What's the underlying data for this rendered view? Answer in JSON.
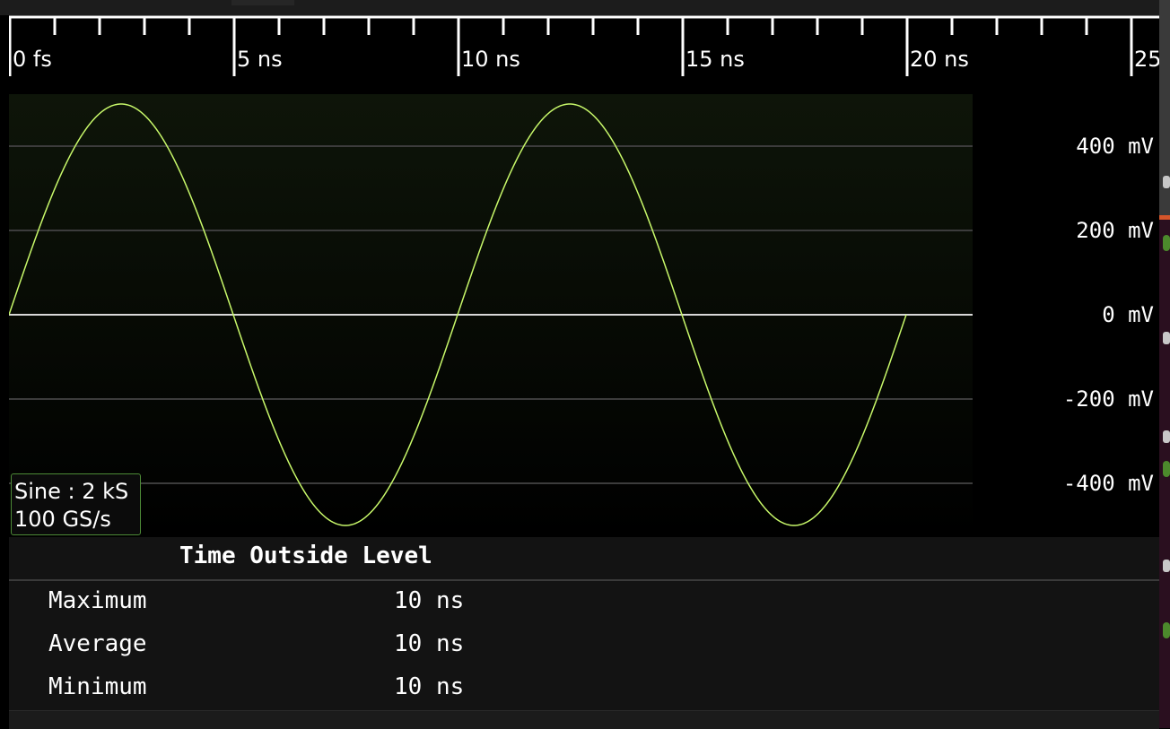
{
  "time_axis": {
    "labels": [
      "0 fs",
      "5 ns",
      "10 ns",
      "15 ns",
      "20 ns",
      "25"
    ]
  },
  "waveform": {
    "chart_data": {
      "type": "line",
      "title": "",
      "xlabel": "",
      "ylabel": "",
      "x_unit": "ns",
      "y_unit": "mV",
      "xlim": [
        0,
        21.5
      ],
      "ylim": [
        -500,
        500
      ],
      "amplitude_mV": 500,
      "period_ns": 10,
      "x_start_ns": 0,
      "x_end_ns": 20,
      "series": [
        {
          "values_description": "sine",
          "color": "#c8f86a"
        }
      ],
      "y_ticks": [
        400,
        200,
        0,
        -200,
        -400
      ],
      "y_tick_labels": [
        "400 mV",
        "200 mV",
        "0 mV",
        "-200 mV",
        "-400 mV"
      ],
      "grid": true
    }
  },
  "channel_info": {
    "name_line": "Sine : 2 kS",
    "rate_line": "100 GS/s"
  },
  "measurement": {
    "title": "Time Outside Level",
    "rows": [
      {
        "label": "Maximum",
        "value": "10 ns"
      },
      {
        "label": "Average",
        "value": "10 ns"
      },
      {
        "label": "Minimum",
        "value": "10 ns"
      }
    ]
  },
  "colors": {
    "trace": "#c8f86a",
    "info_border": "#4d8a37"
  }
}
